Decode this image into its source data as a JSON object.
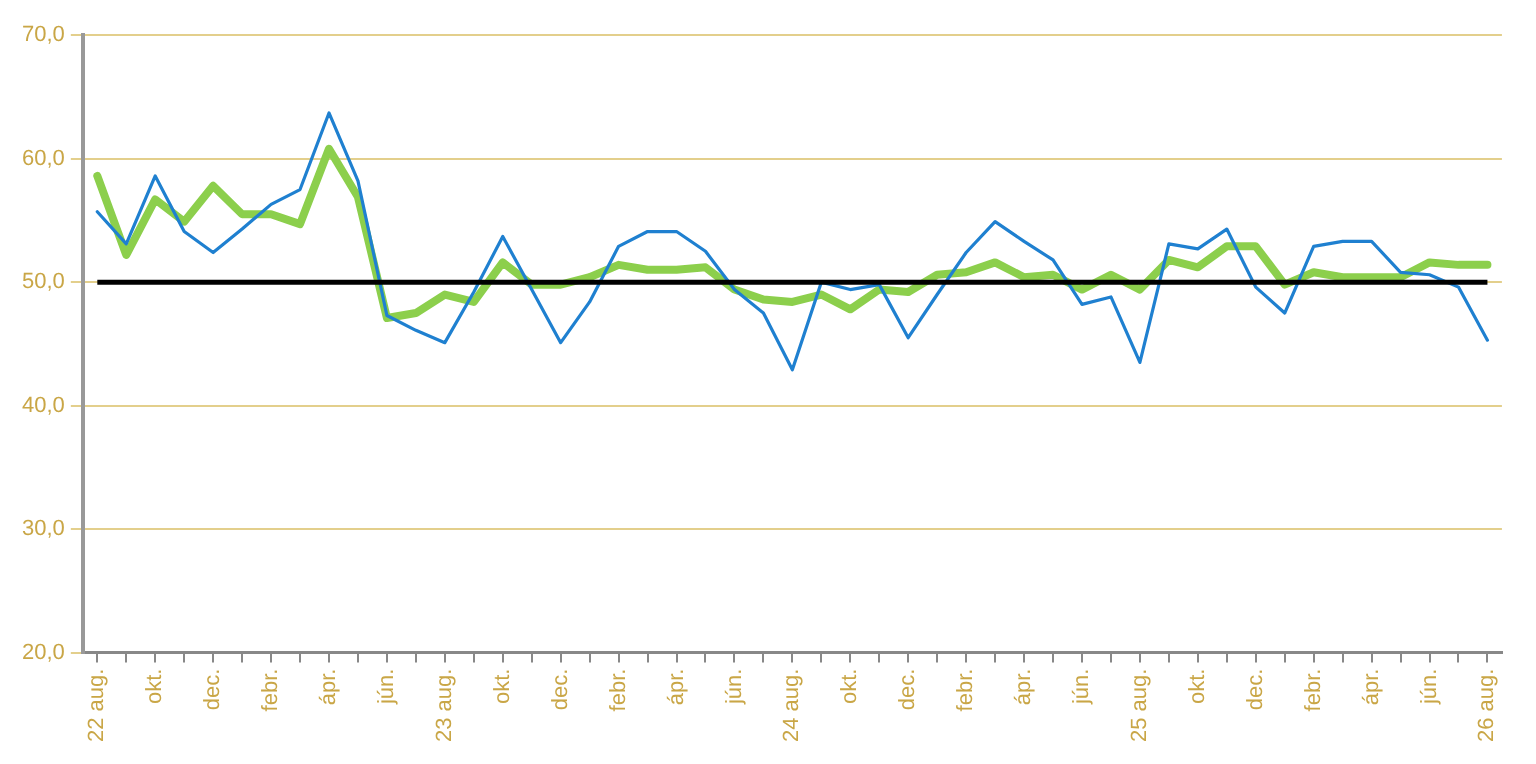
{
  "chart_data": {
    "type": "line",
    "categories": [
      "22 aug.",
      null,
      "okt.",
      null,
      "dec.",
      null,
      "febr.",
      null,
      "ápr.",
      null,
      "jún.",
      null,
      "23 aug.",
      null,
      "okt.",
      null,
      "dec.",
      null,
      "febr.",
      null,
      "ápr.",
      null,
      "jún.",
      null,
      "24 aug.",
      null,
      "okt.",
      null,
      "dec.",
      null,
      "febr.",
      null,
      "ápr.",
      null,
      "jún.",
      null,
      "25 aug.",
      null,
      "okt.",
      null,
      "dec.",
      null,
      "febr.",
      null,
      "ápr.",
      null,
      "jún.",
      null,
      "26 aug."
    ],
    "series": [
      {
        "color": "#1f80d0",
        "values": [
          55.7,
          53.1,
          58.6,
          54.1,
          52.4,
          54.3,
          56.3,
          57.5,
          63.7,
          58.2,
          47.3,
          46.1,
          45.1,
          49.2,
          53.7,
          49.4,
          45.1,
          48.4,
          52.9,
          54.1,
          54.1,
          52.5,
          49.4,
          47.5,
          42.9,
          50.0,
          49.4,
          49.8,
          45.5,
          49.0,
          52.4,
          54.9,
          53.3,
          51.8,
          48.2,
          48.8,
          43.5,
          53.1,
          52.7,
          54.3,
          49.6,
          47.5,
          52.9,
          53.3,
          53.3,
          50.8,
          50.6,
          49.6,
          45.3
        ]
      },
      {
        "color": "#8ccf4c",
        "values": [
          58.6,
          52.2,
          56.7,
          54.9,
          57.8,
          55.5,
          55.5,
          54.7,
          60.8,
          56.9,
          47.1,
          47.5,
          49.0,
          48.4,
          51.6,
          49.8,
          49.8,
          50.4,
          51.4,
          51.0,
          51.0,
          51.2,
          49.4,
          48.6,
          48.4,
          49.0,
          47.8,
          49.4,
          49.2,
          50.6,
          50.8,
          51.6,
          50.4,
          50.6,
          49.4,
          50.6,
          49.4,
          51.8,
          51.2,
          52.9,
          52.9,
          49.8,
          50.8,
          50.4,
          50.4,
          50.4,
          51.6,
          51.4,
          51.4
        ]
      }
    ],
    "ylim": [
      20,
      70
    ],
    "yticks": [
      {
        "value": 20,
        "label": "20,0"
      },
      {
        "value": 30,
        "label": "30,0"
      },
      {
        "value": 40,
        "label": "40,0"
      },
      {
        "value": 50,
        "label": "50,0"
      },
      {
        "value": 60,
        "label": "60,0"
      },
      {
        "value": 70,
        "label": "70,0"
      }
    ],
    "ref_lines": [
      {
        "axis": "y",
        "value": 50,
        "color": "#000000"
      }
    ],
    "grid": "y",
    "legend": false,
    "marker": "none",
    "line_style": "solid"
  }
}
